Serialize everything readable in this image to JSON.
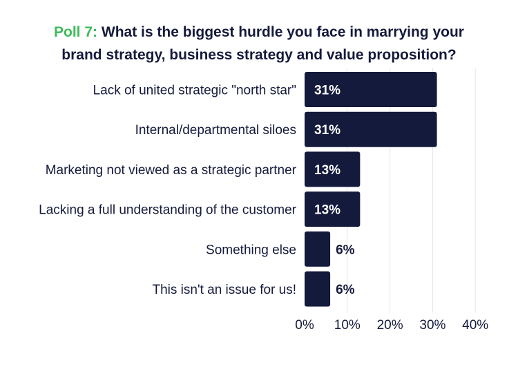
{
  "title": {
    "prefix": "Poll 7:",
    "line1": "What is the biggest hurdle you face in marrying your",
    "line2": "brand strategy, business strategy and value proposition?"
  },
  "colors": {
    "bar": "#141a3c",
    "poll_prefix": "#3dbb5a",
    "grid": "#e6e6e6",
    "text": "#141a3c"
  },
  "chart_data": {
    "type": "bar",
    "orientation": "horizontal",
    "title": "Poll 7: What is the biggest hurdle you face in marrying your brand strategy, business strategy and value proposition?",
    "categories": [
      "Lack of united strategic \"north star\"",
      "Internal/departmental siloes",
      "Marketing not viewed as a strategic partner",
      "Lacking a full understanding of the customer",
      "Something else",
      "This isn't an issue for us!"
    ],
    "values": [
      31,
      31,
      13,
      13,
      6,
      6
    ],
    "value_labels": [
      "31%",
      "31%",
      "13%",
      "13%",
      "6%",
      "6%"
    ],
    "xlim": [
      0,
      40
    ],
    "xticks": [
      0,
      10,
      20,
      30,
      40
    ],
    "xtick_labels": [
      "0%",
      "10%",
      "20%",
      "30%",
      "40%"
    ],
    "xlabel": "",
    "ylabel": "",
    "grid": "vertical"
  }
}
